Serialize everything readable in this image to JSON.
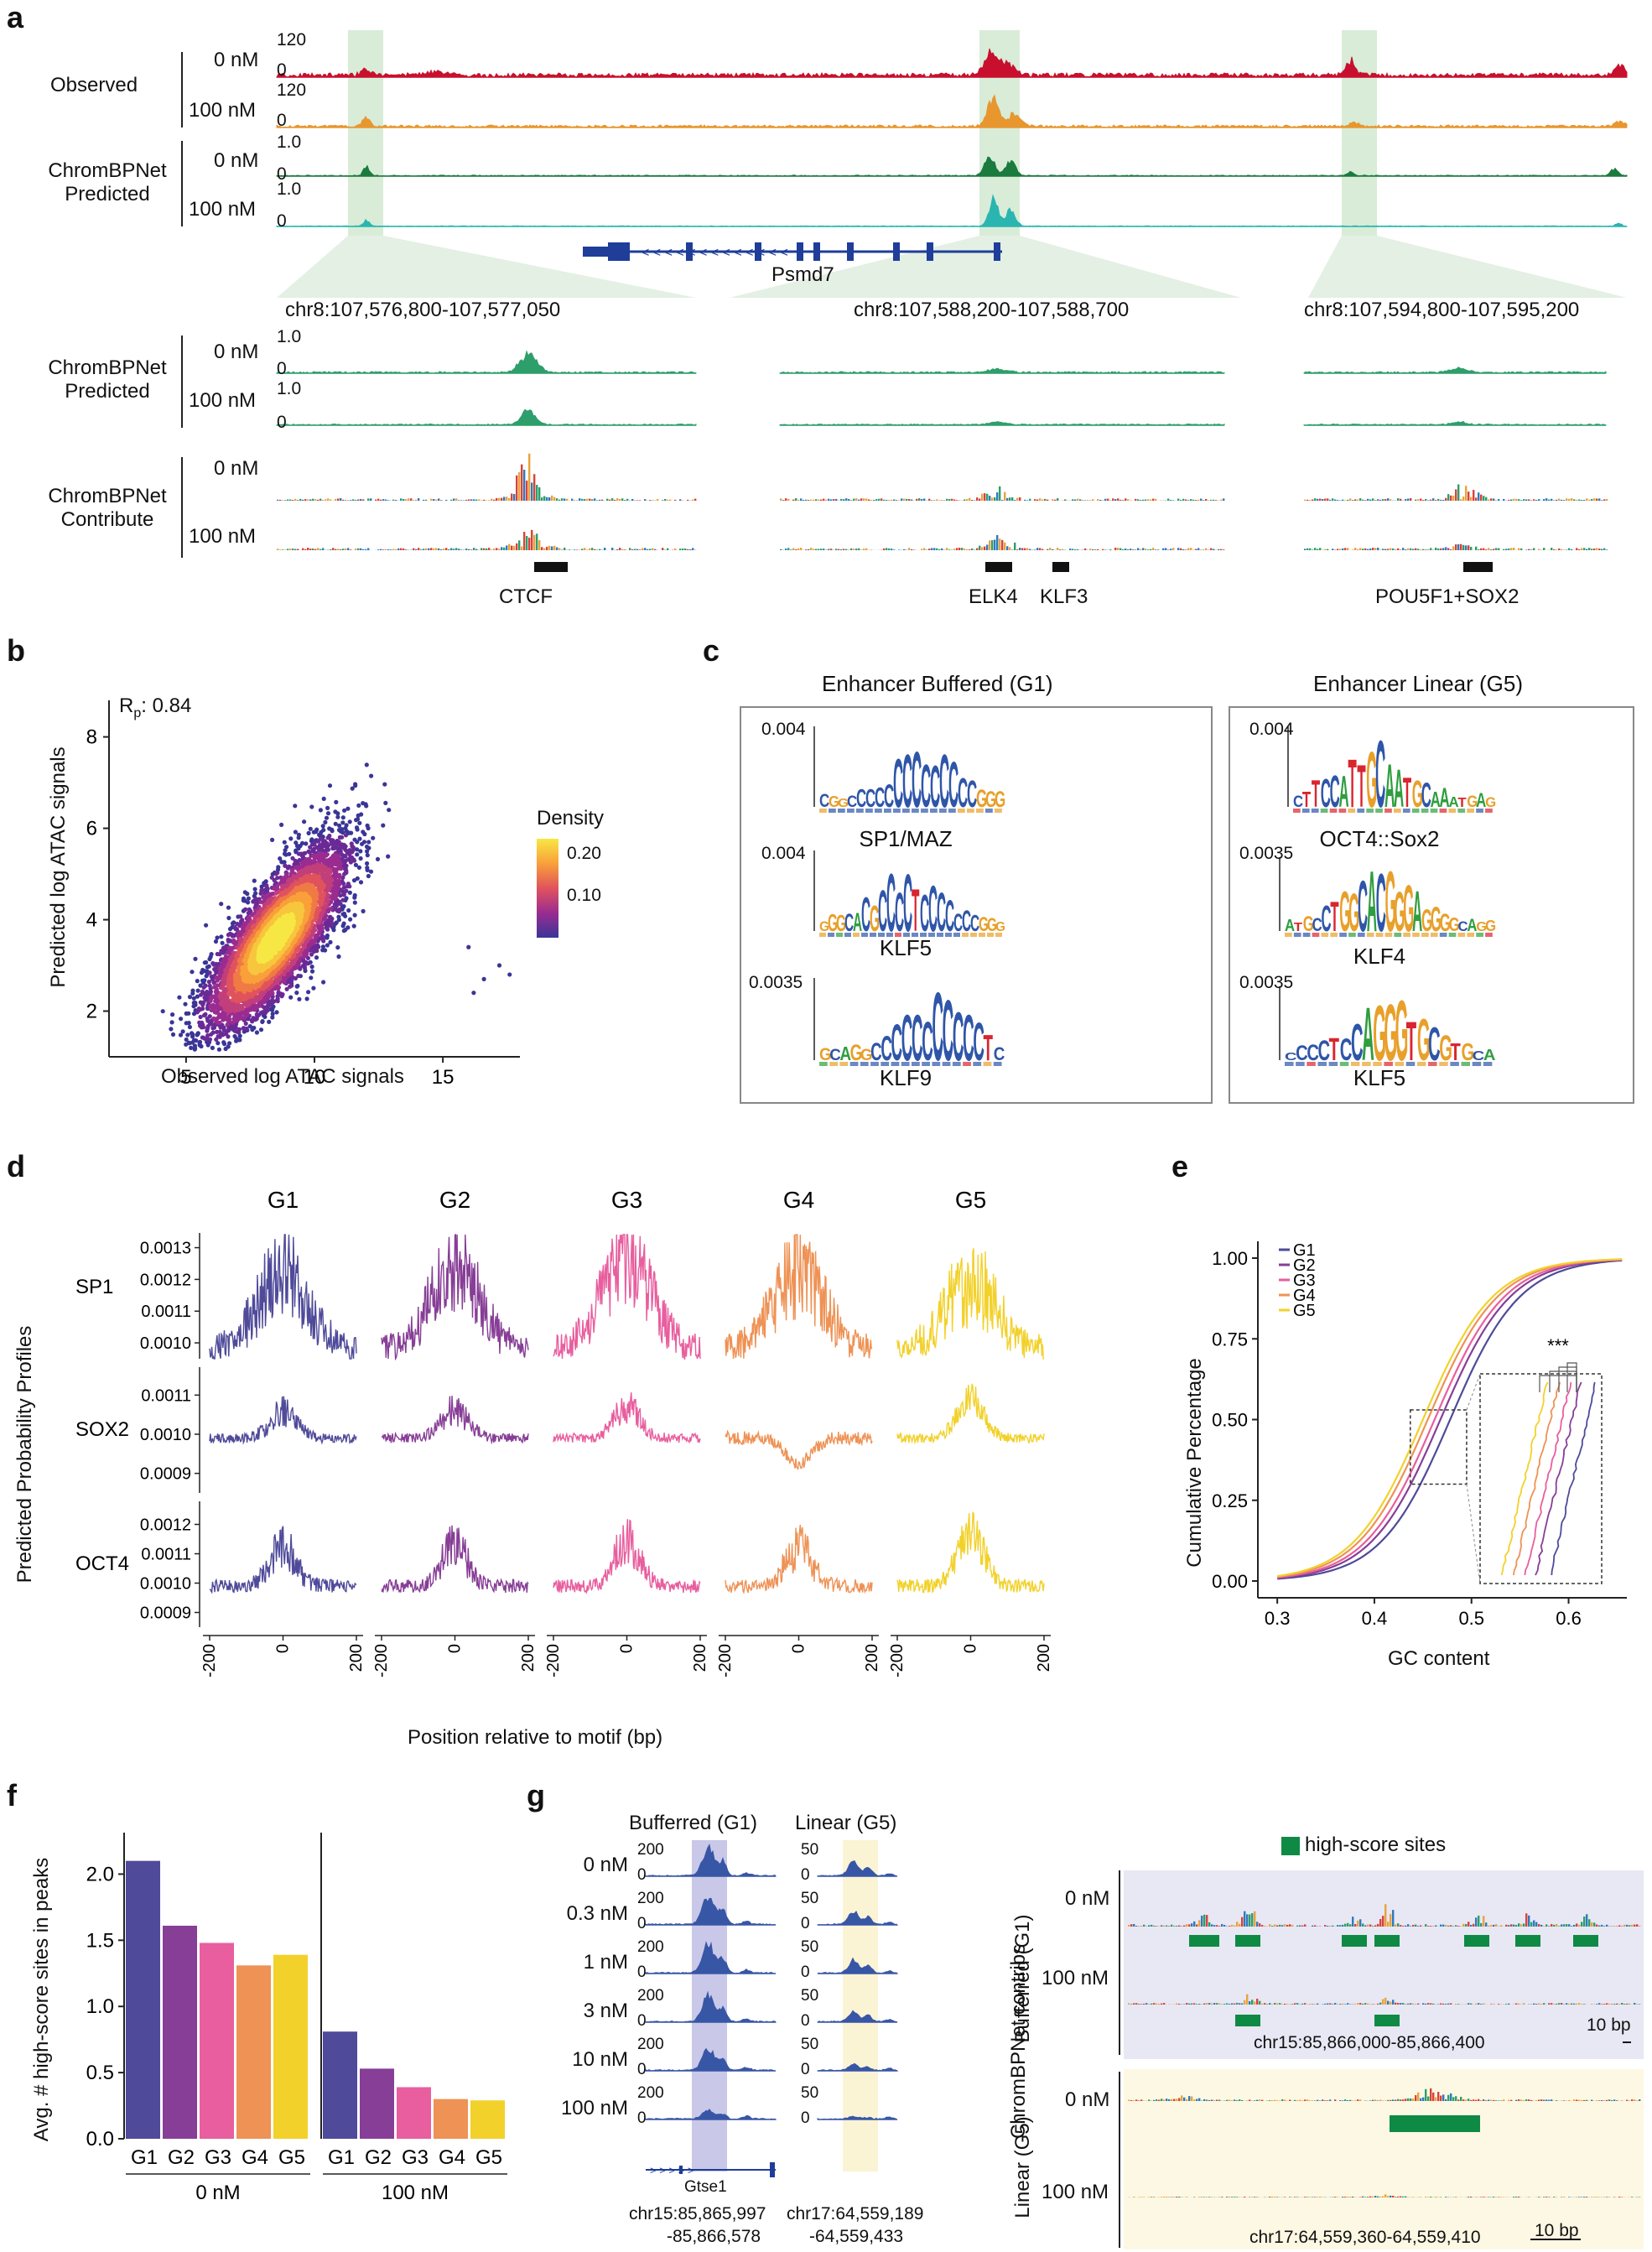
{
  "panels": {
    "a": "a",
    "b": "b",
    "c": "c",
    "d": "d",
    "e": "e",
    "f": "f",
    "g": "g"
  },
  "panel_a": {
    "group_observed": "Observed",
    "group_predicted_line1": "ChromBPNet",
    "group_predicted_line2": "Predicted",
    "group_contrib_line1": "ChromBPNet",
    "group_contrib_line2": "Contribute",
    "conc_0": "0 nM",
    "conc_100": "100 nM",
    "scale_120": "120",
    "scale_0": "0",
    "scale_1": "1.0",
    "gene": "Psmd7",
    "regions": [
      "chr8:107,576,800-107,577,050",
      "chr8:107,588,200-107,588,700",
      "chr8:107,594,800-107,595,200"
    ],
    "motifs": [
      "CTCF",
      "ELK4",
      "KLF3",
      "POU5F1+SOX2"
    ],
    "colors": {
      "obs0": "#c8102e",
      "obs100": "#e8962e",
      "pred0": "#1b7a3e",
      "pred100": "#2ab5b0",
      "contrib": "#2e9e6b",
      "highlight": "#d8ecd8"
    }
  },
  "panel_b": {
    "chart_data": {
      "type": "scatter",
      "title": "",
      "xlabel": "Observed log ATAC signals",
      "ylabel": "Predicted log ATAC signals",
      "xlim": [
        2,
        18
      ],
      "ylim": [
        1,
        8.8
      ],
      "xticks": [
        5,
        10,
        15
      ],
      "yticks": [
        2,
        4,
        6,
        8
      ],
      "annotation_main": "R",
      "annotation_sub": "p",
      "annotation_rest": ": 0.84",
      "density_center": [
        8.5,
        3.6
      ],
      "outliers": [
        [
          16.0,
          3.4
        ],
        [
          16.2,
          2.4
        ],
        [
          17.2,
          3.0
        ],
        [
          17.6,
          2.8
        ],
        [
          16.6,
          2.7
        ]
      ],
      "legend_title": "Density",
      "legend_ticks": [
        "0.20",
        "0.10"
      ]
    }
  },
  "panel_c": {
    "title_left": "Enhancer Buffered (G1)",
    "title_right": "Enhancer Linear (G5)",
    "left_motifs": [
      {
        "name": "SP1/MAZ",
        "ymax": "0.004",
        "letters": "CGGCCCCCCCCCCCCCCGGG"
      },
      {
        "name": "KLF5",
        "ymax": "0.004",
        "letters": "GGGCACGCCCCTCCCCCCCGGG"
      },
      {
        "name": "KLF9",
        "ymax": "0.0035",
        "letters": "GCAGGCCCCCCCCCCCTC"
      }
    ],
    "right_motifs": [
      {
        "name": "OCT4::Sox2",
        "ymax": "0.004",
        "letters": "CTTCCATTGCAATGCAAATGAG"
      },
      {
        "name": "KLF4",
        "ymax": "0.0035",
        "letters": "ATGCCTGGCACGGGAGGGGCAGG"
      },
      {
        "name": "KLF5",
        "ymax": "0.0035",
        "letters": "CCCCTCCAGGGTGCGTGCA"
      }
    ]
  },
  "panel_d": {
    "chart_data": {
      "type": "line",
      "columns": [
        "G1",
        "G2",
        "G3",
        "G4",
        "G5"
      ],
      "rows": [
        {
          "name": "SP1",
          "yticks": [
            "0.0013",
            "0.0012",
            "0.0011",
            "0.0010"
          ],
          "ylim": [
            0.00095,
            0.00132
          ],
          "peak": 0.00122,
          "base": 0.00098
        },
        {
          "name": "SOX2",
          "yticks": [
            "0.0011",
            "0.0010",
            "0.0009"
          ],
          "ylim": [
            0.00085,
            0.00115
          ],
          "peak": 0.00106,
          "base": 0.00099
        },
        {
          "name": "OCT4",
          "yticks": [
            "0.0012",
            "0.0011",
            "0.0010",
            "0.0009"
          ],
          "ylim": [
            0.00085,
            0.00125
          ],
          "peak": 0.00112,
          "base": 0.00099
        }
      ],
      "xticks": [
        "-200",
        "0",
        "200"
      ],
      "xlabel": "Position relative to motif (bp)",
      "ylabel": "Predicted Probability Profiles",
      "colors": [
        "#4f4a99",
        "#873e96",
        "#e85e9e",
        "#ee9255",
        "#f2d12b"
      ]
    }
  },
  "panel_e": {
    "chart_data": {
      "type": "line",
      "xlabel": "GC content",
      "ylabel": "Cumulative Percentage",
      "xlim": [
        0.28,
        0.66
      ],
      "ylim": [
        0,
        1
      ],
      "xticks": [
        "0.3",
        "0.4",
        "0.5",
        "0.6"
      ],
      "yticks": [
        "0.00",
        "0.25",
        "0.50",
        "0.75",
        "1.00"
      ],
      "series": [
        {
          "name": "G1",
          "median": 0.478,
          "color": "#4f4a99"
        },
        {
          "name": "G2",
          "median": 0.468,
          "color": "#873e96"
        },
        {
          "name": "G3",
          "median": 0.462,
          "color": "#e85e9e"
        },
        {
          "name": "G4",
          "median": 0.455,
          "color": "#ee9255"
        },
        {
          "name": "G5",
          "median": 0.45,
          "color": "#f2d12b"
        }
      ],
      "significance": "***"
    }
  },
  "panel_f": {
    "chart_data": {
      "type": "bar",
      "ylabel": "Avg. # high-score sites in peaks",
      "ylim": [
        0,
        2.25
      ],
      "yticks": [
        "0.0",
        "0.5",
        "1.0",
        "1.5",
        "2.0"
      ],
      "categories": [
        "G1",
        "G2",
        "G3",
        "G4",
        "G5"
      ],
      "series": [
        {
          "name": "0 nM",
          "values": [
            2.1,
            1.61,
            1.48,
            1.31,
            1.39
          ]
        },
        {
          "name": "100 nM",
          "values": [
            0.81,
            0.53,
            0.39,
            0.3,
            0.29
          ]
        }
      ],
      "colors": [
        "#4f4a99",
        "#873e96",
        "#e85e9e",
        "#ee9255",
        "#f2d12b"
      ]
    }
  },
  "panel_g": {
    "col_buffered": "Bufferred (G1)",
    "col_linear": "Linear (G5)",
    "concentrations": [
      "0 nM",
      "0.3 nM",
      "1 nM",
      "3 nM",
      "10 nM",
      "100 nM"
    ],
    "scale_buf": "200",
    "scale_lin": "50",
    "scale_zero": "0",
    "gene": "Gtse1",
    "coord_buf_1": "chr15:85,865,997",
    "coord_buf_2": "-85,866,578",
    "coord_lin_1": "chr17:64,559,189",
    "coord_lin_2": "-64,559,433",
    "legend": "high-score sites",
    "side_label": "ChromBPNet contribs",
    "side_buf": "Bufferred (G1)",
    "side_lin": "Linear (G5)",
    "right_0nM": "0 nM",
    "right_100nM": "100 nM",
    "region_buf": "chr15:85,866,000-85,866,400",
    "region_lin": "chr17:64,559,360-64,559,410",
    "scalebar": "10 bp"
  }
}
